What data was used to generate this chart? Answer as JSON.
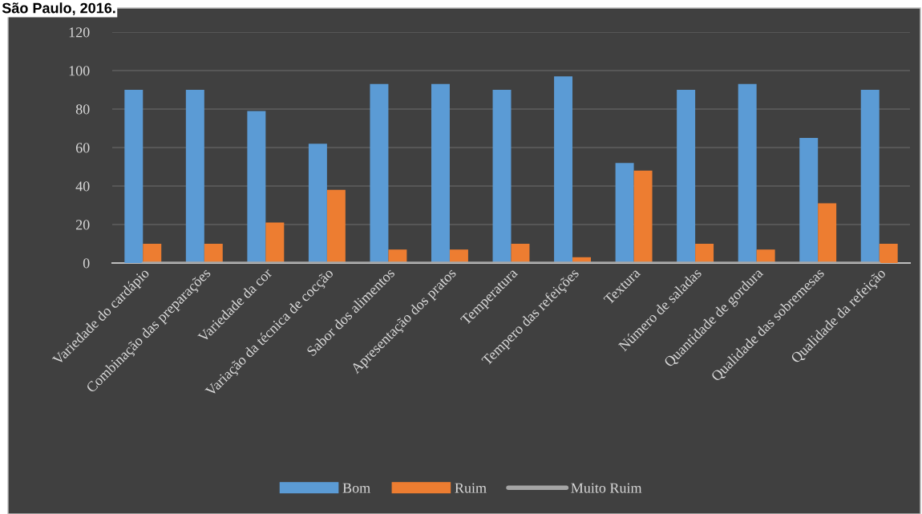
{
  "chart_data": {
    "type": "bar",
    "title": "São Paulo, 2016.",
    "categories": [
      "Variedade do cardápio",
      "Combinação das preparações",
      "Variedade da cor",
      "Variação da técnica de cocção",
      "Sabor dos alimentos",
      "Apresentação dos pratos",
      "Temperatura",
      "Tempero das refeições",
      "Textura",
      "Número de saladas",
      "Quantidade de gordura",
      "Qualidade das sobremesas",
      "Qualidade da refeição"
    ],
    "series": [
      {
        "name": "Bom",
        "color": "#5b9bd5",
        "values": [
          90,
          90,
          79,
          62,
          93,
          93,
          90,
          97,
          52,
          90,
          93,
          65,
          90
        ]
      },
      {
        "name": "Ruim",
        "color": "#ed7d31",
        "values": [
          10,
          10,
          21,
          38,
          7,
          7,
          10,
          3,
          48,
          10,
          7,
          31,
          10
        ]
      },
      {
        "name": "Muito Ruim",
        "color": "#a5a5a5",
        "type": "line",
        "values": [
          0,
          0,
          0,
          0,
          0,
          0,
          0,
          0,
          0,
          0,
          0,
          0,
          0
        ]
      }
    ],
    "ylim": [
      0,
      120
    ],
    "yticks": [
      0,
      20,
      40,
      60,
      80,
      100,
      120
    ],
    "grid": "y",
    "legend": "bottom"
  }
}
